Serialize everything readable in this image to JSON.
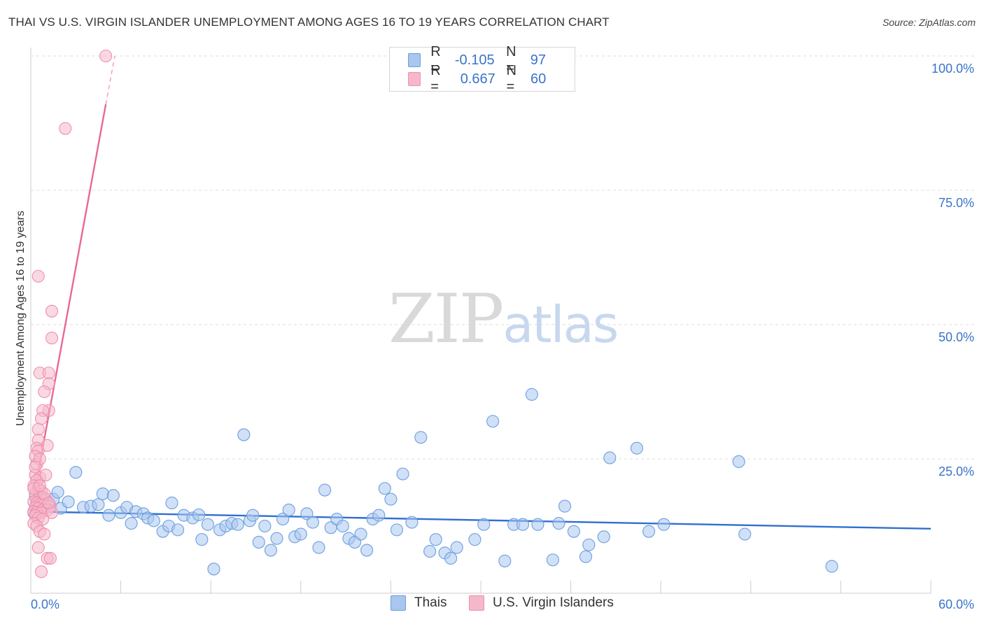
{
  "header": {
    "title": "THAI VS U.S. VIRGIN ISLANDER UNEMPLOYMENT AMONG AGES 16 TO 19 YEARS CORRELATION CHART",
    "source": "Source: ZipAtlas.com"
  },
  "watermark": {
    "zip": "ZIP",
    "atlas": "atlas"
  },
  "legend": {
    "rows": [
      {
        "r_label": "R =",
        "r_value": "-0.105",
        "n_label": "N =",
        "n_value": "97",
        "color": "#a9c6ee"
      },
      {
        "r_label": "R =",
        "r_value": "0.667",
        "n_label": "N =",
        "n_value": "60",
        "color": "#f5b8cb"
      }
    ]
  },
  "bottom_legend": [
    {
      "label": "Thais",
      "color": "#a9c6ee"
    },
    {
      "label": "U.S. Virgin Islanders",
      "color": "#f5b8cb"
    }
  ],
  "chart_data": {
    "type": "scatter",
    "title": "THAI VS U.S. VIRGIN ISLANDER UNEMPLOYMENT AMONG AGES 16 TO 19 YEARS CORRELATION CHART",
    "xlabel": "",
    "ylabel": "Unemployment Among Ages 16 to 19 years",
    "xlim": [
      0,
      60
    ],
    "ylim": [
      0,
      100
    ],
    "x_tick_labels": [
      "0.0%",
      "60.0%"
    ],
    "y_tick_values": [
      25,
      50,
      75,
      100
    ],
    "y_tick_labels": [
      "25.0%",
      "50.0%",
      "75.0%",
      "100.0%"
    ],
    "grid": true,
    "series": [
      {
        "name": "Thais",
        "color": "#6b9fe0",
        "fill": "#a9c6ee",
        "trend": {
          "x": [
            0,
            60
          ],
          "y": [
            15.2,
            12.0
          ],
          "color": "#2f6fd0"
        },
        "points": [
          [
            0.4,
            16.5
          ],
          [
            0.6,
            17.0
          ],
          [
            0.8,
            15.5
          ],
          [
            1.0,
            17.2
          ],
          [
            1.2,
            16.8
          ],
          [
            1.5,
            17.5
          ],
          [
            1.8,
            18.8
          ],
          [
            2.0,
            15.8
          ],
          [
            2.5,
            17.0
          ],
          [
            3.0,
            22.5
          ],
          [
            3.5,
            16.0
          ],
          [
            4.0,
            16.2
          ],
          [
            4.5,
            16.5
          ],
          [
            4.8,
            18.5
          ],
          [
            5.2,
            14.5
          ],
          [
            5.5,
            18.2
          ],
          [
            6.0,
            15.0
          ],
          [
            6.4,
            16.0
          ],
          [
            6.7,
            13.0
          ],
          [
            7.0,
            15.2
          ],
          [
            7.5,
            14.8
          ],
          [
            7.8,
            14.0
          ],
          [
            8.2,
            13.5
          ],
          [
            8.8,
            11.5
          ],
          [
            9.2,
            12.5
          ],
          [
            9.4,
            16.8
          ],
          [
            9.8,
            11.8
          ],
          [
            10.2,
            14.5
          ],
          [
            10.8,
            14.0
          ],
          [
            11.2,
            14.6
          ],
          [
            11.4,
            10.0
          ],
          [
            11.8,
            12.8
          ],
          [
            12.2,
            4.5
          ],
          [
            12.6,
            11.8
          ],
          [
            13.0,
            12.5
          ],
          [
            13.4,
            13.0
          ],
          [
            13.8,
            12.8
          ],
          [
            14.2,
            29.5
          ],
          [
            14.6,
            13.5
          ],
          [
            14.8,
            14.5
          ],
          [
            15.2,
            9.5
          ],
          [
            15.6,
            12.5
          ],
          [
            16.0,
            8.0
          ],
          [
            16.4,
            10.2
          ],
          [
            16.8,
            13.8
          ],
          [
            17.2,
            15.5
          ],
          [
            17.6,
            10.5
          ],
          [
            18.0,
            11.0
          ],
          [
            18.4,
            14.8
          ],
          [
            18.8,
            13.2
          ],
          [
            19.2,
            8.5
          ],
          [
            19.6,
            19.2
          ],
          [
            20.0,
            12.2
          ],
          [
            20.4,
            13.8
          ],
          [
            20.8,
            12.5
          ],
          [
            21.2,
            10.2
          ],
          [
            21.6,
            9.5
          ],
          [
            22.0,
            11.0
          ],
          [
            22.4,
            8.0
          ],
          [
            22.8,
            13.8
          ],
          [
            23.2,
            14.5
          ],
          [
            23.6,
            19.5
          ],
          [
            24.0,
            17.5
          ],
          [
            24.4,
            11.8
          ],
          [
            24.8,
            22.2
          ],
          [
            25.4,
            13.2
          ],
          [
            26.0,
            29.0
          ],
          [
            26.6,
            7.8
          ],
          [
            27.0,
            10.0
          ],
          [
            27.6,
            7.5
          ],
          [
            28.0,
            6.5
          ],
          [
            28.4,
            8.5
          ],
          [
            29.6,
            10.0
          ],
          [
            30.2,
            12.8
          ],
          [
            30.8,
            32.0
          ],
          [
            31.6,
            6.0
          ],
          [
            32.2,
            12.8
          ],
          [
            32.8,
            12.8
          ],
          [
            33.4,
            37.0
          ],
          [
            33.8,
            12.8
          ],
          [
            34.8,
            6.2
          ],
          [
            35.2,
            13.0
          ],
          [
            35.6,
            16.2
          ],
          [
            36.2,
            11.5
          ],
          [
            37.0,
            6.8
          ],
          [
            37.2,
            9.0
          ],
          [
            38.2,
            10.5
          ],
          [
            38.6,
            25.2
          ],
          [
            40.4,
            27.0
          ],
          [
            41.2,
            11.5
          ],
          [
            42.2,
            12.8
          ],
          [
            47.2,
            24.5
          ],
          [
            47.6,
            11.0
          ],
          [
            53.4,
            5.0
          ],
          [
            0.2,
            15.0
          ],
          [
            0.3,
            18.0
          ],
          [
            0.7,
            16.0
          ]
        ]
      },
      {
        "name": "U.S. Virgin Islanders",
        "color": "#ee8fae",
        "fill": "#f5b8cb",
        "trend": {
          "x": [
            0,
            5.0
          ],
          "y": [
            15.0,
            91.0
          ],
          "dashed_x": [
            5.0,
            5.6
          ],
          "dashed_y": [
            91.0,
            100.0
          ],
          "color": "#e8689a"
        },
        "points": [
          [
            5.0,
            100.0
          ],
          [
            2.3,
            86.5
          ],
          [
            0.5,
            59.0
          ],
          [
            1.4,
            52.5
          ],
          [
            1.4,
            47.5
          ],
          [
            0.6,
            41.0
          ],
          [
            1.2,
            41.0
          ],
          [
            1.2,
            39.0
          ],
          [
            0.9,
            37.5
          ],
          [
            1.2,
            34.0
          ],
          [
            0.8,
            34.0
          ],
          [
            0.7,
            32.5
          ],
          [
            0.5,
            30.5
          ],
          [
            0.5,
            28.5
          ],
          [
            0.4,
            27.0
          ],
          [
            0.5,
            26.5
          ],
          [
            1.1,
            27.5
          ],
          [
            0.3,
            25.5
          ],
          [
            0.4,
            24.0
          ],
          [
            0.6,
            25.0
          ],
          [
            0.3,
            22.0
          ],
          [
            0.6,
            21.5
          ],
          [
            0.4,
            21.0
          ],
          [
            0.2,
            20.0
          ],
          [
            0.5,
            19.5
          ],
          [
            0.7,
            19.0
          ],
          [
            0.3,
            18.5
          ],
          [
            0.6,
            18.0
          ],
          [
            0.8,
            17.8
          ],
          [
            1.0,
            17.5
          ],
          [
            0.2,
            17.0
          ],
          [
            0.4,
            16.8
          ],
          [
            0.6,
            16.5
          ],
          [
            0.9,
            16.5
          ],
          [
            1.3,
            16.2
          ],
          [
            0.3,
            16.0
          ],
          [
            0.5,
            15.8
          ],
          [
            0.8,
            15.5
          ],
          [
            1.1,
            15.5
          ],
          [
            0.2,
            15.2
          ],
          [
            0.4,
            15.0
          ],
          [
            0.7,
            15.0
          ],
          [
            1.4,
            15.0
          ],
          [
            0.3,
            14.5
          ],
          [
            0.5,
            14.0
          ],
          [
            0.8,
            13.8
          ],
          [
            0.2,
            13.0
          ],
          [
            0.4,
            12.5
          ],
          [
            0.6,
            11.5
          ],
          [
            0.9,
            11.0
          ],
          [
            0.5,
            8.5
          ],
          [
            1.1,
            6.5
          ],
          [
            1.3,
            6.5
          ],
          [
            0.7,
            4.0
          ],
          [
            1.0,
            22.0
          ],
          [
            0.3,
            23.5
          ],
          [
            0.9,
            18.5
          ],
          [
            0.2,
            19.5
          ],
          [
            1.2,
            16.8
          ],
          [
            0.6,
            20.0
          ]
        ]
      }
    ]
  }
}
